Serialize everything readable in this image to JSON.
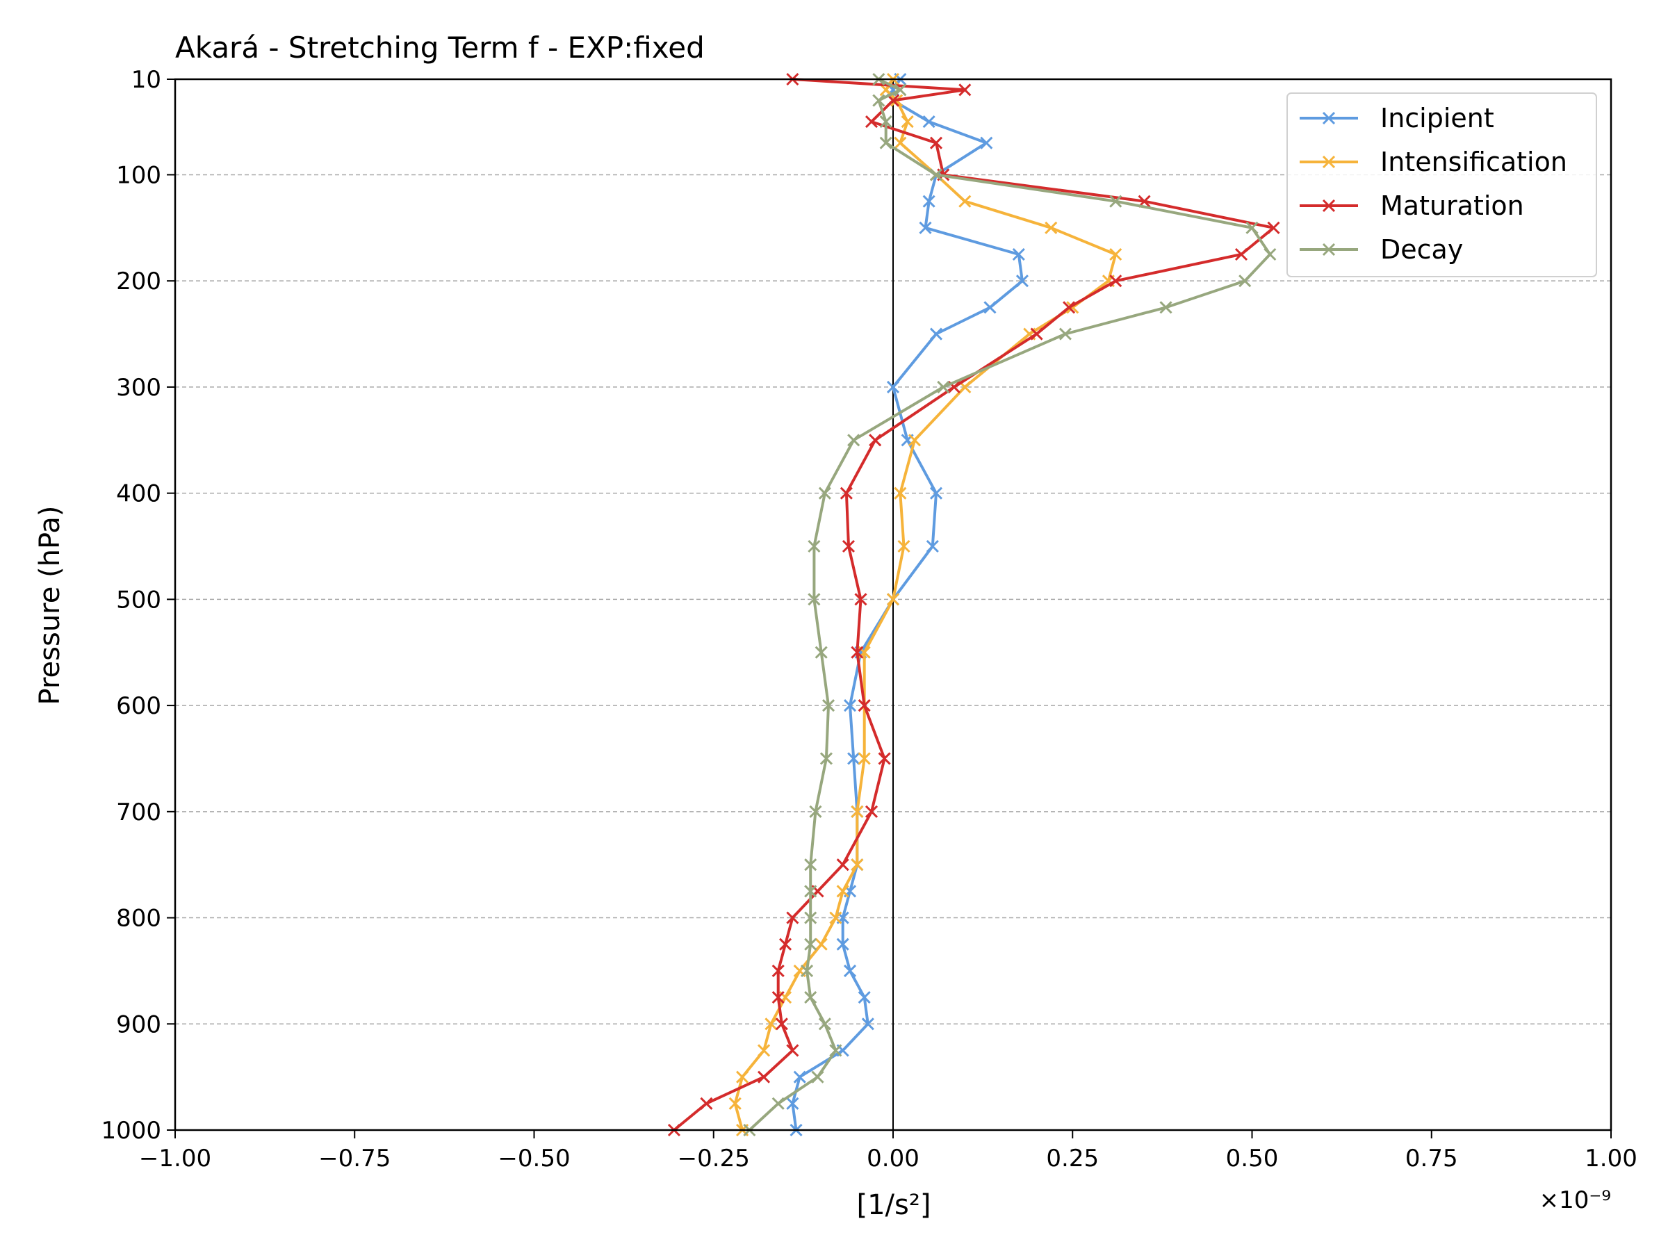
{
  "chart_data": {
    "type": "line",
    "title": "Akará - Stretching Term f - EXP:fixed",
    "xlabel": "[1/s²]",
    "ylabel": "Pressure (hPa)",
    "x_multiplier_label": "×10⁻⁹",
    "xlim": [
      -1.0,
      1.0
    ],
    "ylim": [
      1000,
      10
    ],
    "y_inverted": true,
    "x_ticks": [
      -1.0,
      -0.75,
      -0.5,
      -0.25,
      0.0,
      0.25,
      0.5,
      0.75,
      1.0
    ],
    "x_tick_labels": [
      "−1.00",
      "−0.75",
      "−0.50",
      "−0.25",
      "0.00",
      "0.25",
      "0.50",
      "0.75",
      "1.00"
    ],
    "y_ticks": [
      10,
      100,
      200,
      300,
      400,
      500,
      600,
      700,
      800,
      900,
      1000
    ],
    "y_tick_labels": [
      "10",
      "100",
      "200",
      "300",
      "400",
      "500",
      "600",
      "700",
      "800",
      "900",
      "1000"
    ],
    "grid": "horizontal dashed",
    "zero_line": true,
    "legend_position": "top-right",
    "pressure_levels": [
      10,
      20,
      30,
      50,
      70,
      100,
      125,
      150,
      175,
      200,
      225,
      250,
      300,
      350,
      400,
      450,
      500,
      550,
      600,
      650,
      700,
      750,
      775,
      800,
      825,
      850,
      875,
      900,
      925,
      950,
      975,
      1000
    ],
    "series": [
      {
        "name": "Incipient",
        "color": "#5e9be0",
        "x": [
          0.01,
          0.0,
          0.0,
          0.05,
          0.13,
          0.06,
          0.05,
          0.045,
          0.175,
          0.18,
          0.135,
          0.06,
          0.0,
          0.02,
          0.06,
          0.055,
          0.0,
          -0.045,
          -0.06,
          -0.055,
          -0.05,
          -0.05,
          -0.06,
          -0.07,
          -0.07,
          -0.06,
          -0.04,
          -0.035,
          -0.07,
          -0.13,
          -0.14,
          -0.135
        ]
      },
      {
        "name": "Intensification",
        "color": "#f6b33a",
        "x": [
          0.0,
          -0.01,
          0.005,
          0.02,
          0.01,
          0.06,
          0.1,
          0.22,
          0.31,
          0.3,
          0.25,
          0.19,
          0.1,
          0.03,
          0.01,
          0.015,
          0.0,
          -0.04,
          -0.04,
          -0.04,
          -0.05,
          -0.05,
          -0.07,
          -0.08,
          -0.1,
          -0.13,
          -0.15,
          -0.17,
          -0.18,
          -0.21,
          -0.22,
          -0.21
        ]
      },
      {
        "name": "Maturation",
        "color": "#d42b2b",
        "x": [
          -0.14,
          0.1,
          0.0,
          -0.03,
          0.06,
          0.07,
          0.35,
          0.53,
          0.485,
          0.31,
          0.245,
          0.2,
          0.085,
          -0.025,
          -0.065,
          -0.062,
          -0.045,
          -0.05,
          -0.04,
          -0.012,
          -0.03,
          -0.07,
          -0.105,
          -0.14,
          -0.15,
          -0.16,
          -0.16,
          -0.155,
          -0.14,
          -0.18,
          -0.26,
          -0.305
        ]
      },
      {
        "name": "Decay",
        "color": "#97a77e",
        "x": [
          -0.02,
          0.01,
          -0.02,
          -0.01,
          -0.01,
          0.06,
          0.31,
          0.5,
          0.525,
          0.49,
          0.38,
          0.24,
          0.07,
          -0.055,
          -0.095,
          -0.11,
          -0.11,
          -0.1,
          -0.09,
          -0.093,
          -0.108,
          -0.115,
          -0.115,
          -0.115,
          -0.115,
          -0.12,
          -0.115,
          -0.095,
          -0.08,
          -0.105,
          -0.16,
          -0.2
        ]
      }
    ]
  }
}
